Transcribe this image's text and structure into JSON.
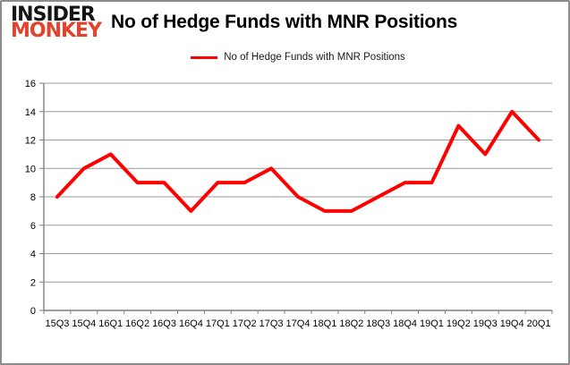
{
  "brand": {
    "line1": "INSIDER",
    "line2": "MONKEY"
  },
  "header": {
    "title": "No of Hedge Funds with MNR Positions"
  },
  "legend": {
    "label": "No of Hedge Funds with MNR Positions"
  },
  "colors": {
    "series_line": "#ff0000",
    "brand_red": "#e2432d",
    "gridline": "#9a9a9a",
    "axis": "#7f7f7f",
    "tick_label": "#000000",
    "frame_border": "#8c8c8c",
    "frame_glow": "#ff0000"
  },
  "chart_data": {
    "type": "line",
    "title": "No of Hedge Funds with MNR Positions",
    "categories": [
      "15Q3",
      "15Q4",
      "16Q1",
      "16Q2",
      "16Q3",
      "16Q4",
      "17Q1",
      "17Q2",
      "17Q3",
      "17Q4",
      "18Q1",
      "18Q2",
      "18Q3",
      "18Q4",
      "19Q1",
      "19Q2",
      "19Q3",
      "19Q4",
      "20Q1"
    ],
    "series": [
      {
        "name": "No of Hedge Funds with MNR Positions",
        "color": "#ff0000",
        "values": [
          8,
          10,
          11,
          9,
          9,
          7,
          9,
          9,
          10,
          8,
          7,
          7,
          8,
          9,
          9,
          13,
          11,
          14,
          12
        ]
      }
    ],
    "xlabel": "",
    "ylabel": "",
    "ylim": [
      0,
      16
    ],
    "ytick_step": 2,
    "grid": "horizontal",
    "legend_position": "top"
  }
}
